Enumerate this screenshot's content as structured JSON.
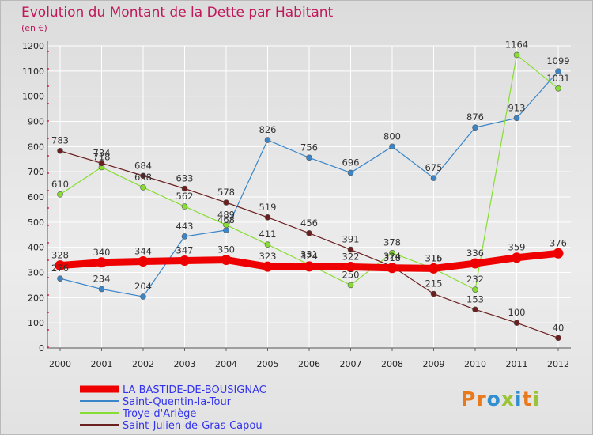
{
  "title": "Evolution du Montant de la Dette par Habitant",
  "subtitle": "(en €)",
  "logo": {
    "text": "Proxiti",
    "letters": [
      "P",
      "r",
      "o",
      "x",
      "i",
      "t",
      "i"
    ],
    "colors": [
      "#e87a1e",
      "#e87a1e",
      "#2f8fd0",
      "#9bc33a",
      "#2f8fd0",
      "#e87a1e",
      "#9bc33a"
    ]
  },
  "chart_data": {
    "type": "line",
    "title": "Evolution du Montant de la Dette par Habitant",
    "subtitle": "(en €)",
    "x": [
      "2000",
      "2001",
      "2002",
      "2003",
      "2004",
      "2005",
      "2006",
      "2007",
      "2008",
      "2009",
      "2010",
      "2011",
      "2012"
    ],
    "ylim": [
      0,
      1200
    ],
    "yticks": [
      0,
      100,
      200,
      300,
      400,
      500,
      600,
      700,
      800,
      900,
      1000,
      1100,
      1200
    ],
    "grid": true,
    "legend_position": "bottom-left",
    "series": [
      {
        "name": "LA BASTIDE-DE-BOUSIGNAC",
        "color": "#ee0000",
        "values": [
          328,
          340,
          344,
          347,
          350,
          323,
          324,
          322,
          318,
          316,
          336,
          359,
          376
        ],
        "labels": [
          "328",
          "340",
          "344",
          "347",
          "350",
          "323",
          "324",
          "322",
          "318",
          "316",
          "336",
          "359",
          "376"
        ],
        "width": "thick"
      },
      {
        "name": "Saint-Quentin-la-Tour",
        "color": "#3a86c8",
        "values": [
          276,
          234,
          204,
          443,
          468,
          826,
          756,
          696,
          800,
          675,
          876,
          913,
          1099
        ],
        "labels": [
          "276",
          "234",
          "204",
          "443",
          "468",
          "826",
          "756",
          "696",
          "800",
          "675",
          "876",
          "913",
          "1099"
        ],
        "width": "thin"
      },
      {
        "name": "Troye-d'Ariège",
        "color": "#88dd33",
        "values": [
          610,
          718,
          638,
          562,
          489,
          411,
          331,
          250,
          378,
          315,
          232,
          1164,
          1031
        ],
        "labels": [
          "610",
          "718",
          "638",
          "562",
          "489",
          "411",
          "331",
          "250",
          "378",
          "315",
          "232",
          "1164",
          "1031"
        ],
        "width": "thin"
      },
      {
        "name": "Saint-Julien-de-Gras-Capou",
        "color": "#6b1f1f",
        "values": [
          783,
          734,
          684,
          633,
          578,
          519,
          456,
          391,
          324,
          215,
          153,
          100,
          40
        ],
        "labels": [
          "783",
          "734",
          "684",
          "633",
          "578",
          "519",
          "456",
          "391",
          "324",
          "215",
          "153",
          "100",
          "40"
        ],
        "width": "thin"
      }
    ]
  }
}
